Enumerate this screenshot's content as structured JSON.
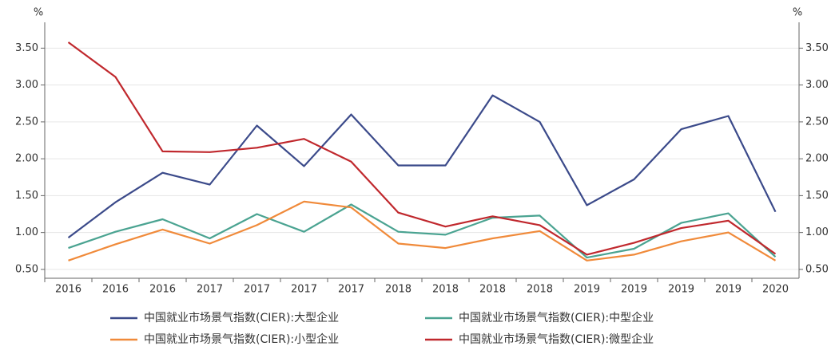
{
  "chart_data": {
    "type": "line",
    "y_unit": "%",
    "categories": [
      "2016",
      "2016",
      "2016",
      "2017",
      "2017",
      "2017",
      "2017",
      "2018",
      "2018",
      "2018",
      "2018",
      "2019",
      "2019",
      "2019",
      "2019",
      "2020"
    ],
    "series": [
      {
        "name": "中国就业市场景气指数(CIER):大型企业",
        "color": "#3b4a8a",
        "values": [
          0.93,
          1.41,
          1.81,
          1.65,
          2.45,
          1.9,
          2.6,
          1.91,
          1.91,
          2.86,
          2.5,
          1.37,
          1.72,
          2.4,
          2.58,
          1.28
        ]
      },
      {
        "name": "中国就业市场景气指数(CIER):中型企业",
        "color": "#4aa391",
        "values": [
          0.79,
          1.01,
          1.18,
          0.92,
          1.25,
          1.01,
          1.38,
          1.01,
          0.97,
          1.2,
          1.23,
          0.66,
          0.78,
          1.13,
          1.26,
          0.67
        ]
      },
      {
        "name": "中国就业市场景气指数(CIER):小型企业",
        "color": "#f08a3a",
        "values": [
          0.62,
          0.84,
          1.04,
          0.85,
          1.1,
          1.42,
          1.34,
          0.85,
          0.79,
          0.92,
          1.02,
          0.62,
          0.7,
          0.88,
          1.0,
          0.62
        ]
      },
      {
        "name": "中国就业市场景气指数(CIER):微型企业",
        "color": "#c0282d",
        "values": [
          3.58,
          3.11,
          2.1,
          2.09,
          2.15,
          2.27,
          1.96,
          1.27,
          1.08,
          1.22,
          1.1,
          0.7,
          0.86,
          1.06,
          1.16,
          0.71
        ]
      }
    ],
    "ylim": [
      0.38,
      3.85
    ],
    "yticks": [
      {
        "value": 0.5,
        "label": "0.50"
      },
      {
        "value": 1,
        "label": "1.00"
      },
      {
        "value": 1.5,
        "label": "1.50"
      },
      {
        "value": 2,
        "label": "2.00"
      },
      {
        "value": 2.5,
        "label": "2.50"
      },
      {
        "value": 3,
        "label": "3.00"
      },
      {
        "value": 3.5,
        "label": "3.50"
      }
    ],
    "grid": true
  }
}
